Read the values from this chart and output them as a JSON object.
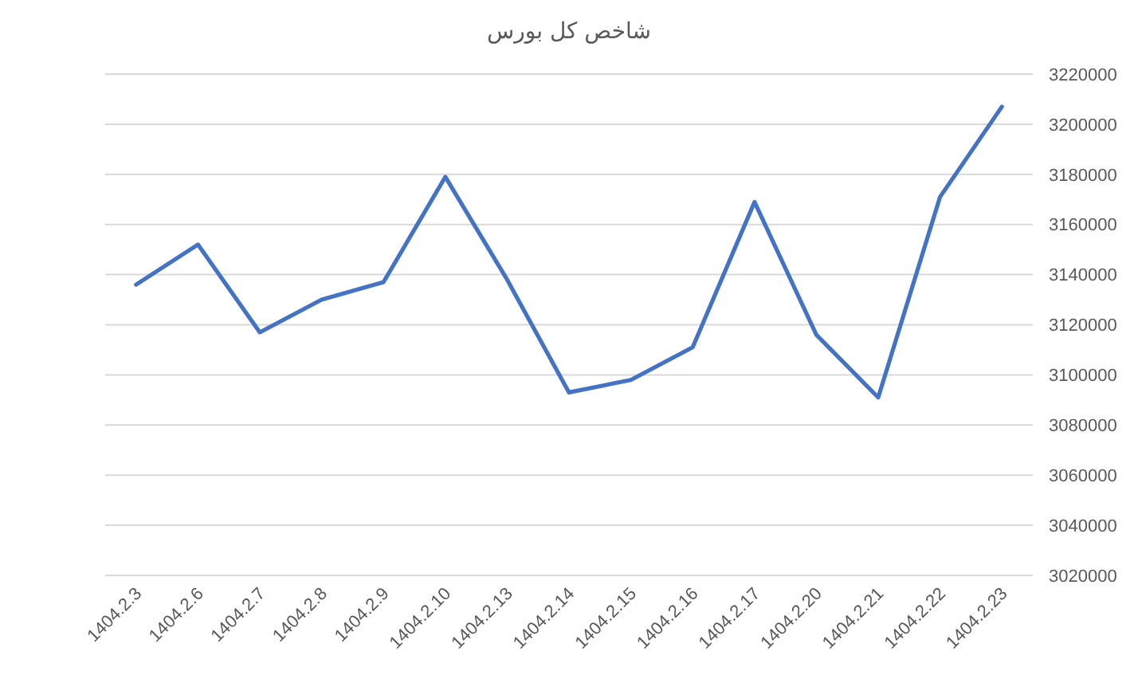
{
  "chart_data": {
    "type": "line",
    "title": "شاخص کل بورس",
    "categories": [
      "1404.2.3",
      "1404.2.6",
      "1404.2.7",
      "1404.2.8",
      "1404.2.9",
      "1404.2.10",
      "1404.2.13",
      "1404.2.14",
      "1404.2.15",
      "1404.2.16",
      "1404.2.17",
      "1404.2.20",
      "1404.2.21",
      "1404.2.22",
      "1404.2.23"
    ],
    "values": [
      3136000,
      3152000,
      3117000,
      3130000,
      3137000,
      3179000,
      3138000,
      3093000,
      3098000,
      3111000,
      3169000,
      3116000,
      3091000,
      3171000,
      3207000
    ],
    "color": "#4472c4",
    "ylim": [
      3020000,
      3220000
    ],
    "yticks": [
      3020000,
      3040000,
      3060000,
      3080000,
      3100000,
      3120000,
      3140000,
      3160000,
      3180000,
      3200000,
      3220000
    ],
    "grid": "y"
  }
}
